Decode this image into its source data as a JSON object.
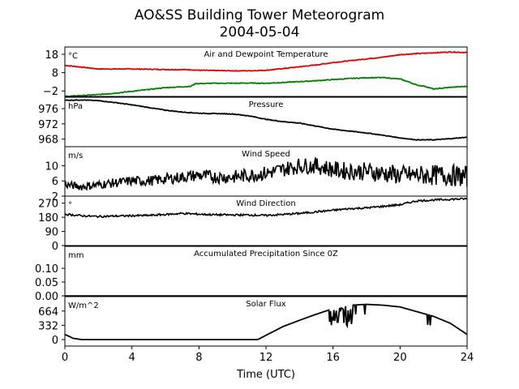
{
  "title": "AO&SS Building Tower Meteorogram",
  "subtitle": "2004-05-04",
  "xlabel": "Time (UTC)",
  "chart_data": {
    "type": "line",
    "title": "AO&SS Building Tower Meteorogram",
    "subtitle": "2004-05-04",
    "xlabel": "Time (UTC)",
    "xlim": [
      0,
      24
    ],
    "xticks": [
      0,
      4,
      8,
      12,
      16,
      20,
      24
    ],
    "panels": [
      {
        "label": "Air and Dewpoint Temperature",
        "unit": "°C",
        "ylim": [
          -5,
          22
        ],
        "yticks": [
          18,
          8,
          -2
        ],
        "series": [
          {
            "color": "#e00000",
            "x": [
              0,
              1,
              2,
              4,
              6,
              7.5,
              8,
              10,
              11,
              12,
              13,
              14,
              15,
              16,
              17,
              18,
              19,
              20,
              21,
              22,
              23,
              24
            ],
            "y": [
              12,
              11,
              10,
              10,
              9.7,
              9.6,
              9.3,
              9,
              9,
              9.3,
              10.2,
              11.2,
              12.2,
              13.5,
              14.5,
              15.5,
              16.5,
              17.8,
              18.4,
              18.8,
              19.3,
              19
            ]
          },
          {
            "color": "#008000",
            "x": [
              0,
              1,
              2,
              3,
              4,
              5,
              6,
              7.5,
              7.8,
              9,
              10,
              11,
              12,
              13,
              14,
              15,
              16,
              17,
              18,
              19,
              20,
              20.5,
              21,
              21.5,
              22,
              22.5,
              23,
              24
            ],
            "y": [
              -5,
              -4.5,
              -4,
              -3.2,
              -2.2,
              -1.2,
              -0.2,
              0.5,
              2,
              2.2,
              2.2,
              2.3,
              2.2,
              2.6,
              3.1,
              3.6,
              4.2,
              4.8,
              5.2,
              5.3,
              4.5,
              3,
              1.2,
              0.5,
              -1,
              -0.5,
              0,
              0.5
            ]
          }
        ]
      },
      {
        "label": "Pressure",
        "unit": "hPa",
        "ylim": [
          966,
          979
        ],
        "yticks": [
          976,
          972,
          968
        ],
        "series": [
          {
            "color": "#000000",
            "x": [
              0,
              1,
              2,
              3,
              4,
              5,
              6,
              7,
              8,
              9,
              10,
              11,
              12,
              13,
              14,
              15,
              16,
              17,
              18,
              19,
              20,
              21,
              22,
              23,
              24
            ],
            "y": [
              978.2,
              978.3,
              978.1,
              977.6,
              977,
              976.3,
              975.6,
              975.1,
              974.8,
              974.7,
              974.6,
              974.1,
              973.2,
              972.6,
              972.2,
              971.4,
              970.6,
              970.1,
              969.6,
              969,
              968.3,
              967.8,
              967.8,
              968.1,
              968.5
            ]
          }
        ]
      },
      {
        "label": "Wind Speed",
        "unit": "m/s",
        "ylim": [
          2,
          15
        ],
        "yticks": [
          10,
          6,
          2
        ],
        "series": [
          {
            "color": "#000000",
            "x": [
              0,
              1,
              2,
              3,
              4,
              5,
              6,
              7,
              8,
              9,
              10,
              11,
              12,
              13,
              14,
              15,
              16,
              17,
              18,
              19,
              20,
              21,
              22,
              23,
              24
            ],
            "y": [
              5,
              4.5,
              5,
              5.5,
              6,
              6,
              6.5,
              7,
              7.5,
              7,
              7,
              7.5,
              8,
              9,
              10,
              10,
              9,
              8.5,
              8.5,
              8,
              7.5,
              7.5,
              7.5,
              7.5,
              7
            ]
          }
        ]
      },
      {
        "label": "Wind Direction",
        "unit": "°",
        "ylim": [
          0,
          315
        ],
        "yticks": [
          270,
          180,
          90,
          0
        ],
        "series": [
          {
            "color": "#000000",
            "x": [
              0,
              1,
              2,
              3,
              4,
              5,
              6,
              7,
              8,
              9,
              10,
              11,
              12,
              13,
              14,
              15,
              16,
              17,
              18,
              19,
              20,
              21,
              22,
              23,
              24
            ],
            "y": [
              200,
              190,
              185,
              188,
              190,
              192,
              198,
              205,
              200,
              196,
              195,
              195,
              192,
              198,
              205,
              215,
              225,
              235,
              240,
              250,
              260,
              285,
              290,
              295,
              298
            ]
          }
        ]
      },
      {
        "label": "Accumulated Precipitation Since 0Z",
        "unit": "mm",
        "ylim": [
          0,
          0.18
        ],
        "yticks": [
          0.1,
          0.05,
          0.0
        ],
        "series": [
          {
            "color": "#000000",
            "x": [
              0,
              24
            ],
            "y": [
              0,
              0
            ]
          }
        ]
      },
      {
        "label": "Solar Flux",
        "unit": "W/m^2",
        "ylim": [
          -150,
          1000
        ],
        "yticks": [
          664,
          332,
          0
        ],
        "series": [
          {
            "color": "#000000",
            "x": [
              0,
              0.5,
              1,
              4,
              8,
              11.5,
              12,
              13,
              14,
              15,
              16,
              17,
              18,
              19,
              20,
              21,
              22,
              23,
              24
            ],
            "y": [
              120,
              30,
              0,
              0,
              0,
              0,
              100,
              300,
              450,
              590,
              720,
              800,
              820,
              800,
              760,
              650,
              540,
              380,
              120
            ]
          }
        ]
      }
    ]
  }
}
